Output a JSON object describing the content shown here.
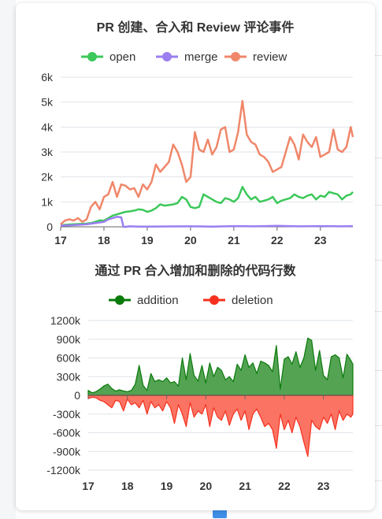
{
  "chart_data": [
    {
      "type": "line",
      "title": "PR 创建、合入和 Review 评论事件",
      "xlabel": "",
      "ylabel": "",
      "xlim": [
        17,
        23.75
      ],
      "ylim": [
        0,
        6000
      ],
      "x_ticks": [
        "17",
        "18",
        "19",
        "20",
        "21",
        "22",
        "23"
      ],
      "y_ticks": [
        "0",
        "1k",
        "2k",
        "3k",
        "4k",
        "5k",
        "6k"
      ],
      "grid": true,
      "legend": "top",
      "series": [
        {
          "name": "open",
          "color": "#3cc85a",
          "x": [
            17.0,
            17.1,
            17.2,
            17.3,
            17.4,
            17.5,
            17.6,
            17.7,
            17.8,
            17.9,
            18.0,
            18.1,
            18.2,
            18.3,
            18.4,
            18.5,
            18.6,
            18.7,
            18.8,
            18.9,
            19.0,
            19.1,
            19.2,
            19.3,
            19.4,
            19.5,
            19.6,
            19.7,
            19.8,
            19.9,
            20.0,
            20.1,
            20.2,
            20.3,
            20.4,
            20.5,
            20.6,
            20.7,
            20.8,
            20.9,
            21.0,
            21.1,
            21.2,
            21.3,
            21.4,
            21.5,
            21.6,
            21.7,
            21.8,
            21.9,
            22.0,
            22.1,
            22.2,
            22.3,
            22.4,
            22.5,
            22.6,
            22.7,
            22.8,
            22.9,
            23.0,
            23.1,
            23.2,
            23.3,
            23.4,
            23.5,
            23.6,
            23.7,
            23.75
          ],
          "y": [
            60,
            80,
            90,
            100,
            110,
            120,
            130,
            150,
            200,
            260,
            250,
            350,
            450,
            500,
            550,
            600,
            620,
            650,
            700,
            680,
            600,
            650,
            750,
            900,
            850,
            870,
            900,
            950,
            1200,
            1100,
            800,
            750,
            800,
            1300,
            1200,
            1100,
            1000,
            950,
            1150,
            1100,
            1000,
            1150,
            1600,
            1300,
            1100,
            1200,
            1000,
            1050,
            1100,
            1200,
            950,
            1050,
            1100,
            1150,
            1300,
            1200,
            1150,
            1250,
            1300,
            1100,
            1250,
            1200,
            1400,
            1350,
            1300,
            1100,
            1250,
            1300,
            1400
          ]
        },
        {
          "name": "merge",
          "color": "#9b7ef0",
          "x": [
            17.0,
            17.2,
            17.4,
            17.6,
            17.8,
            18.0,
            18.1,
            18.2,
            18.3,
            18.4,
            18.45,
            18.5,
            18.6,
            18.8,
            19.0,
            19.5,
            20.0,
            20.5,
            21.0,
            21.5,
            22.0,
            22.5,
            23.0,
            23.5,
            23.75
          ],
          "y": [
            50,
            60,
            80,
            100,
            150,
            200,
            300,
            350,
            400,
            380,
            0,
            0,
            20,
            10,
            10,
            15,
            20,
            10,
            30,
            20,
            40,
            20,
            30,
            20,
            30
          ]
        },
        {
          "name": "review",
          "color": "#f0876a",
          "x": [
            17.0,
            17.1,
            17.2,
            17.3,
            17.4,
            17.5,
            17.6,
            17.7,
            17.8,
            17.9,
            18.0,
            18.1,
            18.2,
            18.3,
            18.4,
            18.5,
            18.6,
            18.7,
            18.8,
            18.9,
            19.0,
            19.1,
            19.2,
            19.3,
            19.4,
            19.5,
            19.6,
            19.7,
            19.8,
            19.9,
            20.0,
            20.1,
            20.2,
            20.3,
            20.4,
            20.5,
            20.6,
            20.7,
            20.8,
            20.9,
            21.0,
            21.1,
            21.2,
            21.3,
            21.4,
            21.5,
            21.6,
            21.7,
            21.8,
            21.9,
            22.0,
            22.1,
            22.2,
            22.3,
            22.4,
            22.5,
            22.6,
            22.7,
            22.8,
            22.9,
            23.0,
            23.1,
            23.2,
            23.3,
            23.4,
            23.5,
            23.6,
            23.7,
            23.75
          ],
          "y": [
            100,
            250,
            300,
            250,
            350,
            200,
            300,
            800,
            1000,
            700,
            1200,
            1300,
            1800,
            1200,
            1700,
            1650,
            1500,
            1550,
            1200,
            1700,
            1500,
            1800,
            2500,
            2200,
            2400,
            2600,
            3300,
            3000,
            2500,
            1800,
            2000,
            3800,
            3100,
            3000,
            3500,
            2900,
            3200,
            3900,
            4000,
            3000,
            3100,
            3800,
            5050,
            3700,
            3400,
            3300,
            2900,
            2800,
            2600,
            2200,
            2300,
            2400,
            3000,
            3600,
            3300,
            2700,
            3700,
            3400,
            3200,
            3600,
            2800,
            2900,
            3000,
            3900,
            3100,
            3000,
            3200,
            4000,
            3600
          ]
        }
      ]
    },
    {
      "type": "area",
      "title": "通过 PR 合入增加和删除的代码行数",
      "xlabel": "",
      "ylabel": "",
      "xlim": [
        17,
        23.75
      ],
      "ylim": [
        -1200000,
        1200000
      ],
      "x_ticks": [
        "17",
        "18",
        "19",
        "20",
        "21",
        "22",
        "23"
      ],
      "y_ticks": [
        "1200k",
        "900k",
        "600k",
        "300k",
        "0",
        "-300k",
        "-600k",
        "-900k",
        "-1200k"
      ],
      "grid": true,
      "legend": "top",
      "series": [
        {
          "name": "addition",
          "color": "#0a7a0a",
          "x": [
            17.0,
            17.1,
            17.2,
            17.3,
            17.4,
            17.5,
            17.6,
            17.7,
            17.8,
            17.9,
            18.0,
            18.1,
            18.2,
            18.3,
            18.4,
            18.5,
            18.6,
            18.7,
            18.8,
            18.9,
            19.0,
            19.1,
            19.2,
            19.3,
            19.4,
            19.5,
            19.6,
            19.7,
            19.8,
            19.9,
            20.0,
            20.1,
            20.2,
            20.3,
            20.4,
            20.5,
            20.6,
            20.7,
            20.8,
            20.9,
            21.0,
            21.1,
            21.2,
            21.3,
            21.4,
            21.5,
            21.6,
            21.7,
            21.8,
            21.9,
            22.0,
            22.1,
            22.2,
            22.3,
            22.4,
            22.5,
            22.6,
            22.7,
            22.8,
            22.9,
            23.0,
            23.1,
            23.2,
            23.3,
            23.4,
            23.5,
            23.6,
            23.7,
            23.75
          ],
          "y": [
            80,
            40,
            60,
            100,
            150,
            180,
            110,
            70,
            90,
            70,
            60,
            80,
            180,
            480,
            160,
            80,
            350,
            220,
            250,
            220,
            280,
            200,
            220,
            150,
            600,
            250,
            670,
            320,
            230,
            480,
            200,
            520,
            300,
            450,
            400,
            250,
            300,
            220,
            500,
            400,
            650,
            450,
            520,
            350,
            550,
            520,
            480,
            380,
            800,
            100,
            580,
            620,
            500,
            700,
            450,
            600,
            920,
            880,
            400,
            720,
            320,
            250,
            620,
            650,
            600,
            280,
            660,
            560,
            500
          ]
        },
        {
          "name": "deletion",
          "color": "#f5301e",
          "x": [
            17.0,
            17.1,
            17.2,
            17.3,
            17.4,
            17.5,
            17.6,
            17.7,
            17.8,
            17.9,
            18.0,
            18.1,
            18.2,
            18.3,
            18.4,
            18.5,
            18.6,
            18.7,
            18.8,
            18.9,
            19.0,
            19.1,
            19.2,
            19.3,
            19.4,
            19.5,
            19.6,
            19.7,
            19.8,
            19.9,
            20.0,
            20.1,
            20.2,
            20.3,
            20.4,
            20.5,
            20.6,
            20.7,
            20.8,
            20.9,
            21.0,
            21.1,
            21.2,
            21.3,
            21.4,
            21.5,
            21.6,
            21.7,
            21.8,
            21.9,
            22.0,
            22.1,
            22.2,
            22.3,
            22.4,
            22.5,
            22.6,
            22.7,
            22.8,
            22.9,
            23.0,
            23.1,
            23.2,
            23.3,
            23.4,
            23.5,
            23.6,
            23.7,
            23.75
          ],
          "y": [
            -50,
            -30,
            -40,
            -80,
            -100,
            -150,
            -200,
            -80,
            -100,
            -250,
            -60,
            -150,
            -120,
            -200,
            -80,
            -300,
            -100,
            -200,
            -150,
            -250,
            -100,
            -200,
            -450,
            -150,
            -300,
            -500,
            -120,
            -350,
            -250,
            -300,
            -150,
            -500,
            -200,
            -350,
            -400,
            -250,
            -480,
            -300,
            -220,
            -400,
            -250,
            -550,
            -300,
            -220,
            -350,
            -500,
            -450,
            -550,
            -850,
            -300,
            -550,
            -400,
            -600,
            -350,
            -500,
            -750,
            -980,
            -400,
            -500,
            -550,
            -350,
            -450,
            -300,
            -550,
            -250,
            -400,
            -300,
            -350,
            -300
          ]
        }
      ]
    }
  ]
}
